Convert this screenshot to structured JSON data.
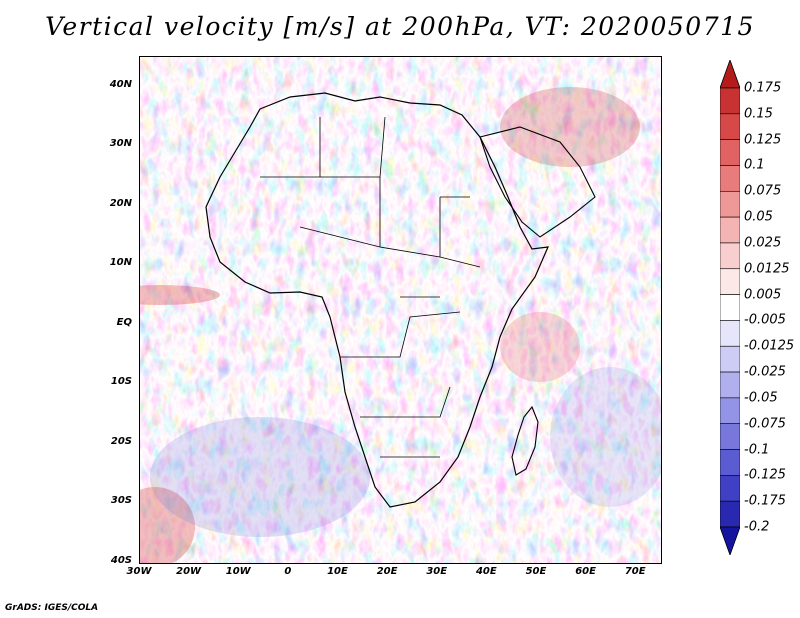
{
  "title": "Vertical velocity [m/s] at 200hPa, VT: 2020050715",
  "credit": "GrADS: IGES/COLA",
  "map": {
    "region": "Africa",
    "lon_range": [
      -30,
      75
    ],
    "lat_range": [
      -40,
      45
    ]
  },
  "axes": {
    "lat_ticks": [
      {
        "value": 40,
        "label": "40N"
      },
      {
        "value": 30,
        "label": "30N"
      },
      {
        "value": 20,
        "label": "20N"
      },
      {
        "value": 10,
        "label": "10N"
      },
      {
        "value": 0,
        "label": "EQ"
      },
      {
        "value": -10,
        "label": "10S"
      },
      {
        "value": -20,
        "label": "20S"
      },
      {
        "value": -30,
        "label": "30S"
      },
      {
        "value": -40,
        "label": "40S"
      }
    ],
    "lon_ticks": [
      {
        "value": -30,
        "label": "30W"
      },
      {
        "value": -20,
        "label": "20W"
      },
      {
        "value": -10,
        "label": "10W"
      },
      {
        "value": 0,
        "label": "0"
      },
      {
        "value": 10,
        "label": "10E"
      },
      {
        "value": 20,
        "label": "20E"
      },
      {
        "value": 30,
        "label": "30E"
      },
      {
        "value": 40,
        "label": "40E"
      },
      {
        "value": 50,
        "label": "50E"
      },
      {
        "value": 60,
        "label": "60E"
      },
      {
        "value": 70,
        "label": "70E"
      }
    ]
  },
  "colorbar": {
    "labels": [
      "0.175",
      "0.15",
      "0.125",
      "0.1",
      "0.075",
      "0.05",
      "0.025",
      "0.0125",
      "0.005",
      "-0.005",
      "-0.0125",
      "-0.025",
      "-0.05",
      "-0.075",
      "-0.1",
      "-0.125",
      "-0.175",
      "-0.2"
    ],
    "colors": [
      "#b41c1c",
      "#c83232",
      "#d74848",
      "#e06262",
      "#e87c7c",
      "#ef9898",
      "#f5b4b4",
      "#f9cece",
      "#fde8e8",
      "#ffffff",
      "#e6e6fb",
      "#ccccf5",
      "#b0b0ee",
      "#9494e6",
      "#7878dc",
      "#5c5cd2",
      "#4040c4",
      "#2828b0",
      "#1414a0"
    ]
  }
}
